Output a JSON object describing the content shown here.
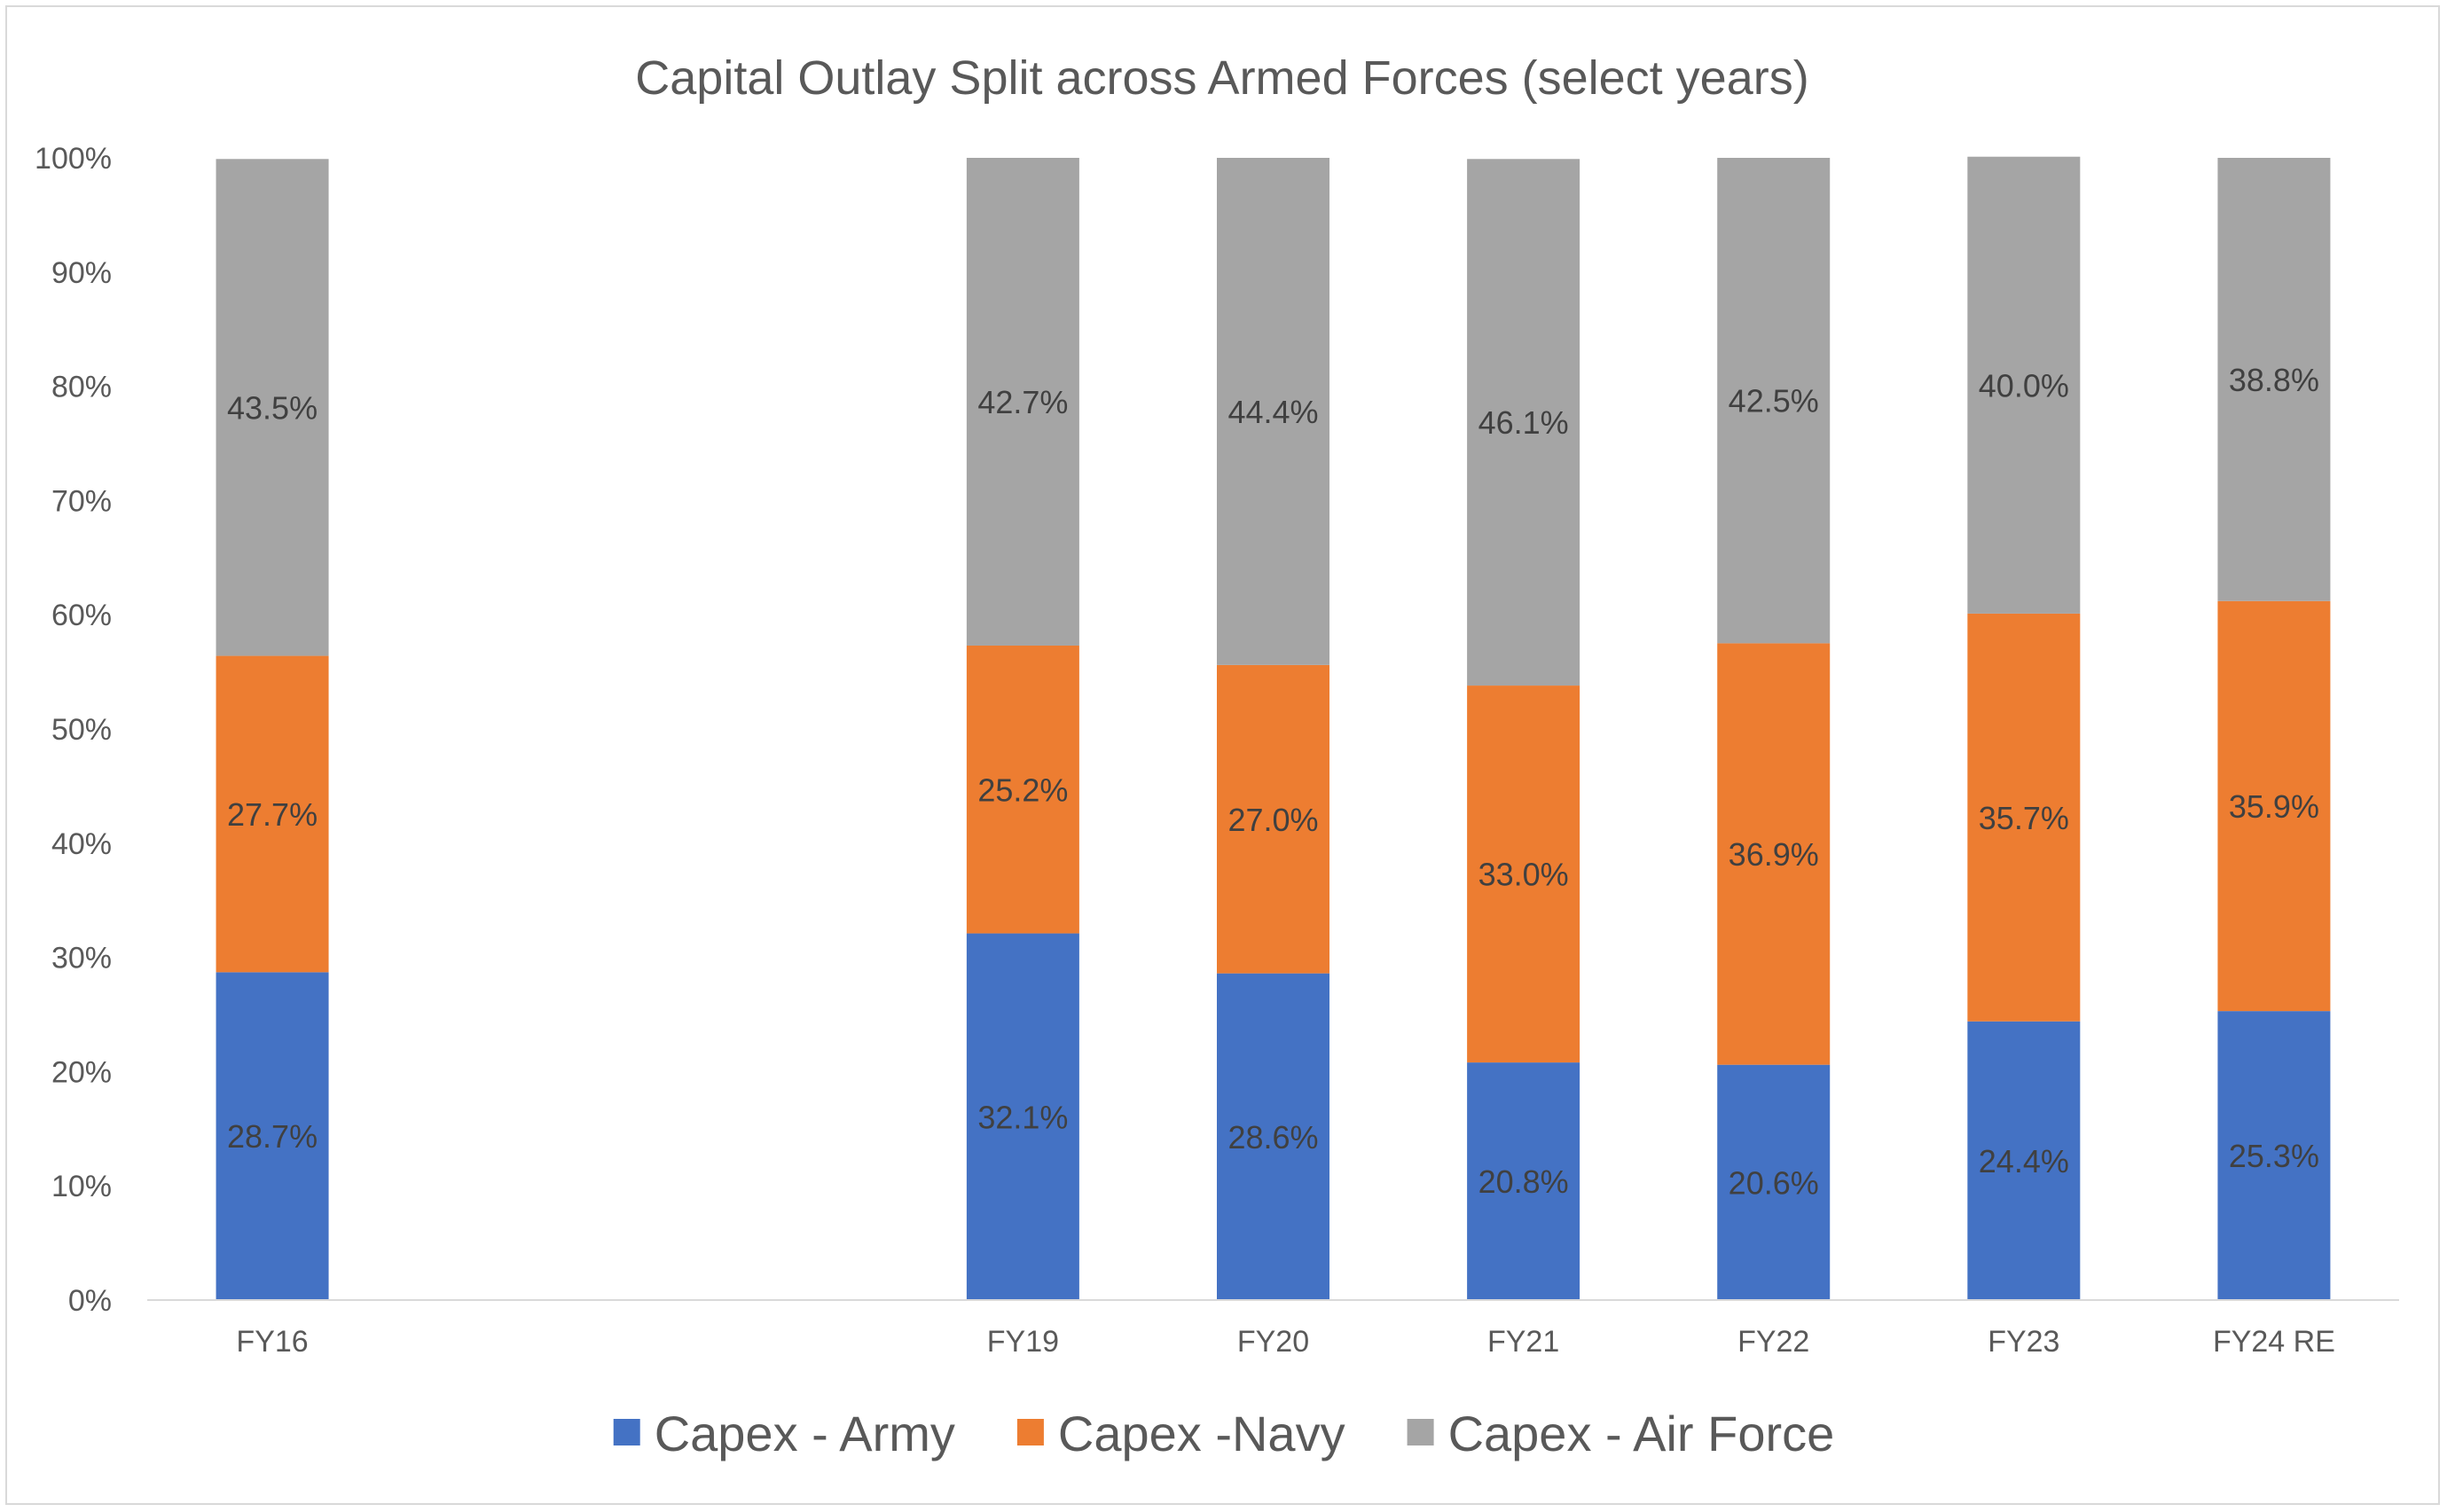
{
  "chart_data": {
    "type": "bar",
    "stacked": true,
    "percent_stacked": true,
    "title": "Capital Outlay Split across Armed Forces (select years)",
    "xlabel": "",
    "ylabel": "",
    "ylim": [
      0,
      100
    ],
    "yticks": [
      "0%",
      "10%",
      "20%",
      "30%",
      "40%",
      "50%",
      "60%",
      "70%",
      "80%",
      "90%",
      "100%"
    ],
    "grid": false,
    "legend_position": "bottom",
    "slots": [
      "FY16",
      "",
      "",
      "FY19",
      "FY20",
      "FY21",
      "FY22",
      "FY23",
      "FY24 RE"
    ],
    "categories": [
      "FY16",
      "FY19",
      "FY20",
      "FY21",
      "FY22",
      "FY23",
      "FY24 RE"
    ],
    "series": [
      {
        "name": "Capex - Army",
        "color": "#4472C4",
        "values": [
          28.7,
          32.1,
          28.6,
          20.8,
          20.6,
          24.4,
          25.3
        ],
        "labels": [
          "28.7%",
          "32.1%",
          "28.6%",
          "20.8%",
          "20.6%",
          "24.4%",
          "25.3%"
        ]
      },
      {
        "name": "Capex -Navy",
        "color": "#ED7D31",
        "values": [
          27.7,
          25.2,
          27.0,
          33.0,
          36.9,
          35.7,
          35.9
        ],
        "labels": [
          "27.7%",
          "25.2%",
          "27.0%",
          "33.0%",
          "36.9%",
          "35.7%",
          "35.9%"
        ]
      },
      {
        "name": "Capex - Air Force",
        "color": "#A5A5A5",
        "values": [
          43.5,
          42.7,
          44.4,
          46.1,
          42.5,
          40.0,
          38.8
        ],
        "labels": [
          "43.5%",
          "42.7%",
          "44.4%",
          "46.1%",
          "42.5%",
          "40.0%",
          "38.8%"
        ]
      }
    ]
  }
}
